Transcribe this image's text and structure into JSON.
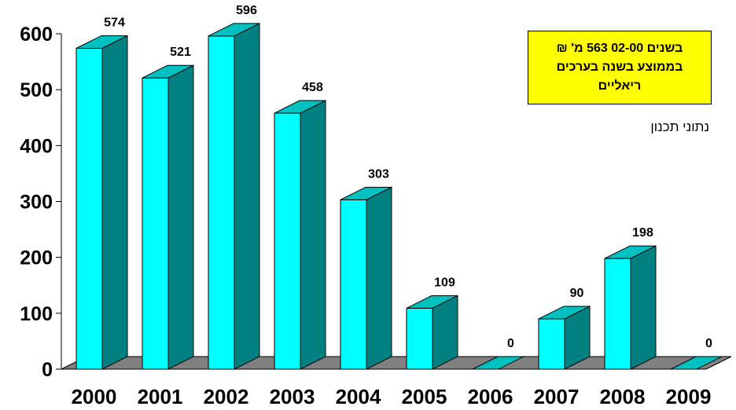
{
  "chart_data": {
    "type": "bar",
    "style": "3d-column",
    "categories": [
      "2000",
      "2001",
      "2002",
      "2003",
      "2004",
      "2005",
      "2006",
      "2007",
      "2008",
      "2009"
    ],
    "values": [
      574,
      521,
      596,
      458,
      303,
      109,
      0,
      90,
      198,
      0
    ],
    "data_labels": [
      "574",
      "521",
      "596",
      "458",
      "303",
      "109",
      "0",
      "90",
      "198",
      "0"
    ],
    "y_ticks": [
      "0",
      "100",
      "200",
      "300",
      "400",
      "500",
      "600"
    ],
    "ylim": [
      0,
      600
    ],
    "grid": false,
    "legend": "none",
    "colors": {
      "bar_front": "#00ffff",
      "bar_side": "#008080",
      "bar_top": "#00c0c0",
      "floor": "#808080"
    }
  },
  "annotation": {
    "lines": [
      "בשנים 02-00 563 מ' ₪",
      "בממוצע בשנה בערכים",
      "ריאליים"
    ],
    "background": "#ffff00"
  },
  "source_note": "נתוני תכנון"
}
